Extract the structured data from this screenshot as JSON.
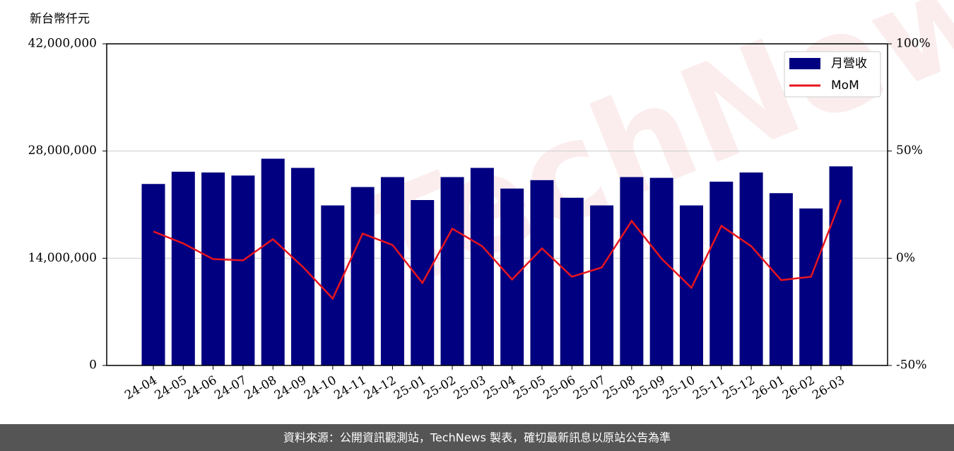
{
  "chart_data": {
    "type": "bar-line",
    "y_label": "新台幣仟元",
    "watermark": "TechNews",
    "footer": "資料來源：公開資訊觀測站，TechNews 製表，確切最新訊息以原站公告為準",
    "categories": [
      "24-04",
      "24-05",
      "24-06",
      "24-07",
      "24-08",
      "24-09",
      "24-10",
      "24-11",
      "24-12",
      "25-01",
      "25-02",
      "25-03",
      "25-04",
      "25-05",
      "25-06",
      "25-07",
      "25-08",
      "25-09",
      "25-10",
      "25-11",
      "25-12",
      "26-01",
      "26-02",
      "26-03"
    ],
    "series": [
      {
        "name": "月營收",
        "type": "bar",
        "color": "#000080",
        "values": [
          23700000,
          25300000,
          25200000,
          24800000,
          27000000,
          25800000,
          20900000,
          23300000,
          24600000,
          21600000,
          24600000,
          25800000,
          23100000,
          24200000,
          21900000,
          20900000,
          24600000,
          24500000,
          20900000,
          24000000,
          25200000,
          22500000,
          20500000,
          26000000
        ]
      },
      {
        "name": "MoM",
        "type": "line",
        "color": "#e8141e",
        "axis": "y2",
        "values": [
          12.5,
          6.9,
          -0.4,
          -1.0,
          8.9,
          -4.0,
          -18.8,
          11.5,
          6.2,
          -11.5,
          13.8,
          5.6,
          -9.9,
          4.6,
          -8.6,
          -4.3,
          17.4,
          -0.2,
          -13.8,
          15.1,
          5.6,
          -10.2,
          -8.6,
          27.3
        ]
      }
    ],
    "ylim": [
      0,
      42000000
    ],
    "yticks": [
      0,
      {
        "value": 14000000,
        "label": "14,000,000"
      },
      {
        "value": 28000000,
        "label": "28,000,000"
      },
      {
        "value": 42000000,
        "label": "42,000,000"
      }
    ],
    "y2lim": [
      -50,
      100
    ],
    "y2ticks": [
      {
        "value": -50,
        "label": "-50%"
      },
      {
        "value": 0,
        "label": "0%"
      },
      {
        "value": 50,
        "label": "50%"
      },
      {
        "value": 100,
        "label": "100%"
      }
    ],
    "grid": true,
    "legend": "upper right"
  }
}
